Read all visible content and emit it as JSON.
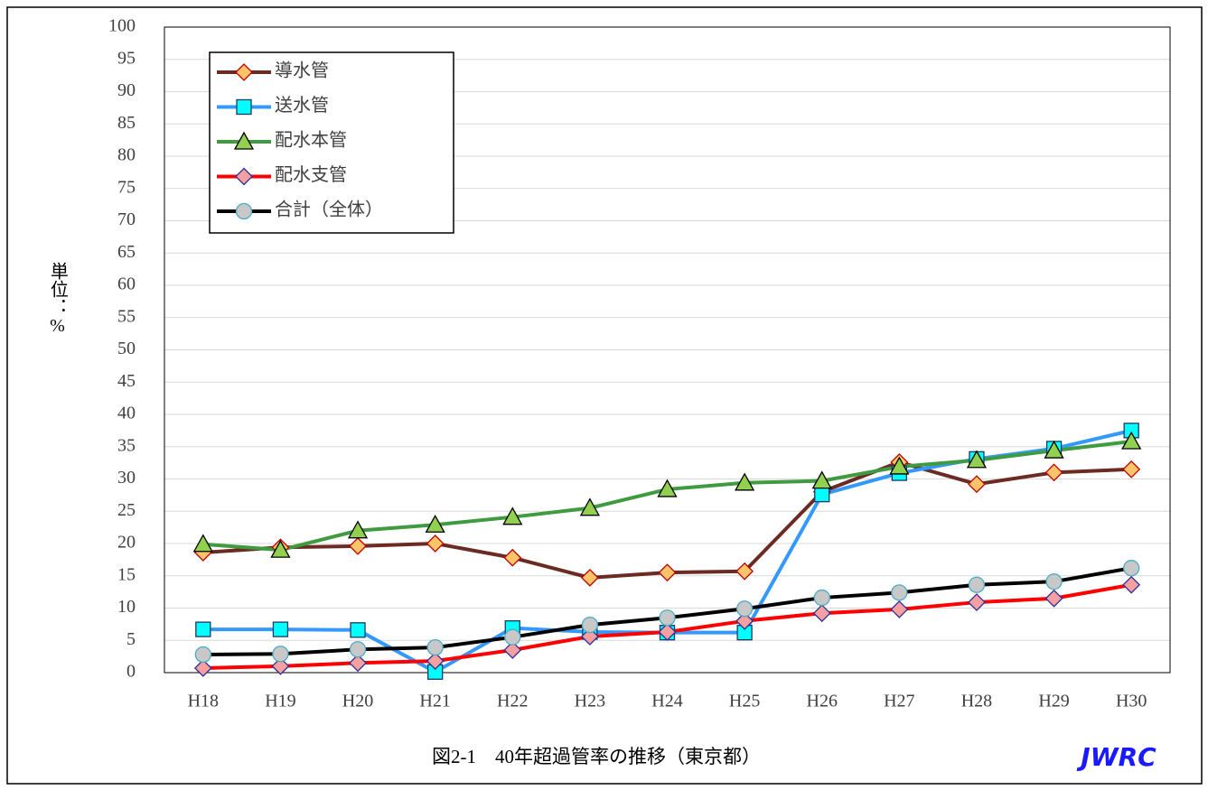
{
  "chart_data": {
    "type": "line",
    "title": "図2-1　40年超過管率の推移（東京都）",
    "logo": "JWRC",
    "y_label": "単位：%",
    "categories": [
      "H18",
      "H19",
      "H20",
      "H21",
      "H22",
      "H23",
      "H24",
      "H25",
      "H26",
      "H27",
      "H28",
      "H29",
      "H30"
    ],
    "series": [
      {
        "name": "導水管",
        "color": "#6b2a22",
        "marker": "diamond",
        "marker_color": "#fdc46a",
        "marker_edge": "#c00000",
        "values": [
          18.6,
          19.4,
          19.6,
          20.0,
          17.8,
          14.7,
          15.5,
          15.7,
          28.0,
          32.6,
          29.2,
          31.0,
          31.5
        ]
      },
      {
        "name": "送水管",
        "color": "#3399ff",
        "marker": "square",
        "marker_color": "#00ffff",
        "marker_edge": "#1f3864",
        "values": [
          6.7,
          6.7,
          6.6,
          0.1,
          6.9,
          6.3,
          6.2,
          6.2,
          27.6,
          30.9,
          33.1,
          34.7,
          37.5
        ]
      },
      {
        "name": "配水本管",
        "color": "#3f9b3f",
        "marker": "triangle",
        "marker_color": "#92d050",
        "marker_edge": "#000000",
        "values": [
          19.9,
          19.0,
          22.0,
          22.9,
          24.1,
          25.5,
          28.4,
          29.4,
          29.7,
          31.9,
          32.9,
          34.4,
          35.8
        ]
      },
      {
        "name": "配水支管",
        "color": "#ff0000",
        "marker": "diamond",
        "marker_color": "#f4a0a0",
        "marker_edge": "#2e2e9a",
        "values": [
          0.7,
          1.0,
          1.5,
          1.8,
          3.5,
          5.6,
          6.3,
          8.0,
          9.2,
          9.8,
          10.9,
          11.5,
          13.6
        ]
      },
      {
        "name": "合計（全体）",
        "color": "#000000",
        "marker": "circle",
        "marker_color": "#c8c8c8",
        "marker_edge": "#4aacc6",
        "values": [
          2.8,
          2.9,
          3.6,
          3.9,
          5.5,
          7.4,
          8.5,
          9.9,
          11.6,
          12.4,
          13.6,
          14.1,
          16.2
        ]
      }
    ],
    "ylim": [
      0,
      100
    ],
    "yticks": [
      0,
      5,
      10,
      15,
      20,
      25,
      30,
      35,
      40,
      45,
      50,
      55,
      60,
      65,
      70,
      75,
      80,
      85,
      90,
      95,
      100
    ],
    "grid": true,
    "legend": "upper-left"
  }
}
